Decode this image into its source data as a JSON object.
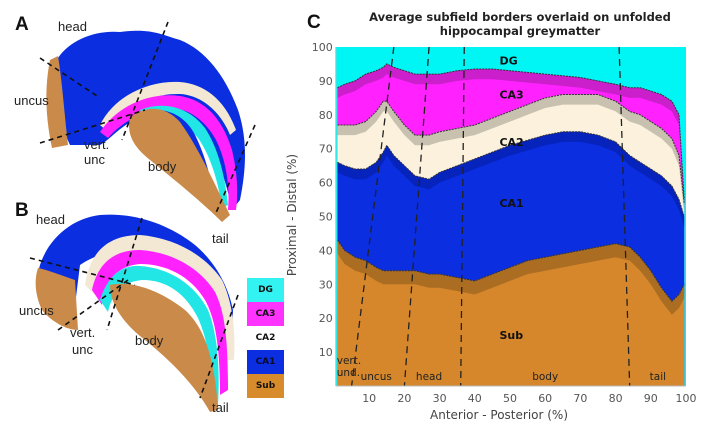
{
  "panels": {
    "A": {
      "letter": "A",
      "labels": {
        "head": "head",
        "uncus": "uncus",
        "vert": "vert.",
        "unc": "unc",
        "body": "body",
        "tail": "tail"
      }
    },
    "B": {
      "letter": "B",
      "labels": {
        "head": "head",
        "uncus": "uncus",
        "vert": "vert.",
        "unc": "unc",
        "body": "body",
        "tail": "tail"
      }
    },
    "C": {
      "letter": "C"
    }
  },
  "legend": [
    {
      "label": "DG",
      "color": "#33f2f2"
    },
    {
      "label": "CA3",
      "color": "#ff33ff"
    },
    {
      "label": "CA2",
      "color": "#ffffff"
    },
    {
      "label": "CA1",
      "color": "#0a2ee0"
    },
    {
      "label": "Sub",
      "color": "#d88b2a"
    }
  ],
  "colors": {
    "DG": "#00f5f5",
    "CA3": "#ff22ff",
    "CA2": "#fbf1dc",
    "CA1": "#0a2ee0",
    "Sub": "#d6872b",
    "CA1_dark": "#0520b0",
    "Sub_dark": "#9c6420",
    "CA2_grey": "#b8b0a2",
    "CA3_dark": "#b81fb8",
    "DG_dark": "#1cb0b0"
  },
  "chart_data": {
    "type": "area",
    "title": "Average subfield borders overlaid on unfolded hippocampal greymatter",
    "xlabel": "Anterior - Posterior (%)",
    "ylabel": "Proximal - Distal (%)",
    "xlim": [
      0,
      100
    ],
    "ylim": [
      0,
      100
    ],
    "xticks": [
      10,
      20,
      30,
      40,
      50,
      60,
      70,
      80,
      90,
      100
    ],
    "yticks": [
      10,
      20,
      30,
      40,
      50,
      60,
      70,
      80,
      90,
      100
    ],
    "x": [
      1,
      3,
      6,
      9,
      12,
      14,
      15,
      17,
      20,
      23,
      27,
      30,
      35,
      40,
      45,
      50,
      55,
      60,
      65,
      70,
      75,
      80,
      84,
      87,
      90,
      93,
      96,
      98,
      99.5
    ],
    "borders": [
      {
        "name": "Sub/CA1",
        "values": [
          43,
          40,
          38,
          37,
          35,
          34,
          34,
          34,
          34,
          34,
          33,
          33,
          32,
          31,
          33,
          35,
          37,
          38,
          39,
          40,
          41,
          42,
          41,
          38,
          34,
          29,
          25,
          27,
          30
        ]
      },
      {
        "name": "CA1/CA2",
        "values": [
          66,
          65,
          64,
          64,
          66,
          69,
          71,
          68,
          65,
          62,
          61,
          63,
          65,
          67,
          69,
          71,
          72.5,
          74,
          75,
          75,
          74,
          72,
          68,
          66,
          64,
          62,
          59,
          55,
          50
        ]
      },
      {
        "name": "CA2/CA3",
        "values": [
          77,
          77,
          77,
          78,
          81,
          84,
          84,
          81,
          77,
          74,
          74,
          75,
          76,
          77,
          79,
          81,
          83,
          85,
          86,
          86,
          86,
          84,
          81,
          80,
          78,
          76,
          73,
          68,
          54
        ]
      },
      {
        "name": "CA3/DG",
        "values": [
          88,
          89,
          90,
          92,
          93,
          94,
          95,
          94,
          93,
          92,
          92,
          92,
          93,
          93.5,
          93.5,
          93,
          92.5,
          92,
          91.5,
          91,
          90,
          89,
          88,
          88,
          87,
          86,
          84,
          80,
          55
        ]
      }
    ],
    "region_labels": [
      {
        "label": "DG",
        "x": 47,
        "y": 96
      },
      {
        "label": "CA3",
        "x": 47,
        "y": 86
      },
      {
        "label": "CA2",
        "x": 47,
        "y": 72
      },
      {
        "label": "CA1",
        "x": 47,
        "y": 54
      },
      {
        "label": "Sub",
        "x": 47,
        "y": 15
      }
    ],
    "segment_boundaries": [
      {
        "x_top": 17,
        "x_bottom": 5
      },
      {
        "x_top": 27,
        "x_bottom": 20
      },
      {
        "x_top": 37,
        "x_bottom": 36
      },
      {
        "x_top": 81,
        "x_bottom": 84
      }
    ],
    "segment_labels": [
      {
        "label": "vert. und.",
        "x": 3
      },
      {
        "label": "uncus",
        "x": 12
      },
      {
        "label": "head",
        "x": 27
      },
      {
        "label": "body",
        "x": 60
      },
      {
        "label": "tail",
        "x": 92
      }
    ],
    "grid": false
  }
}
